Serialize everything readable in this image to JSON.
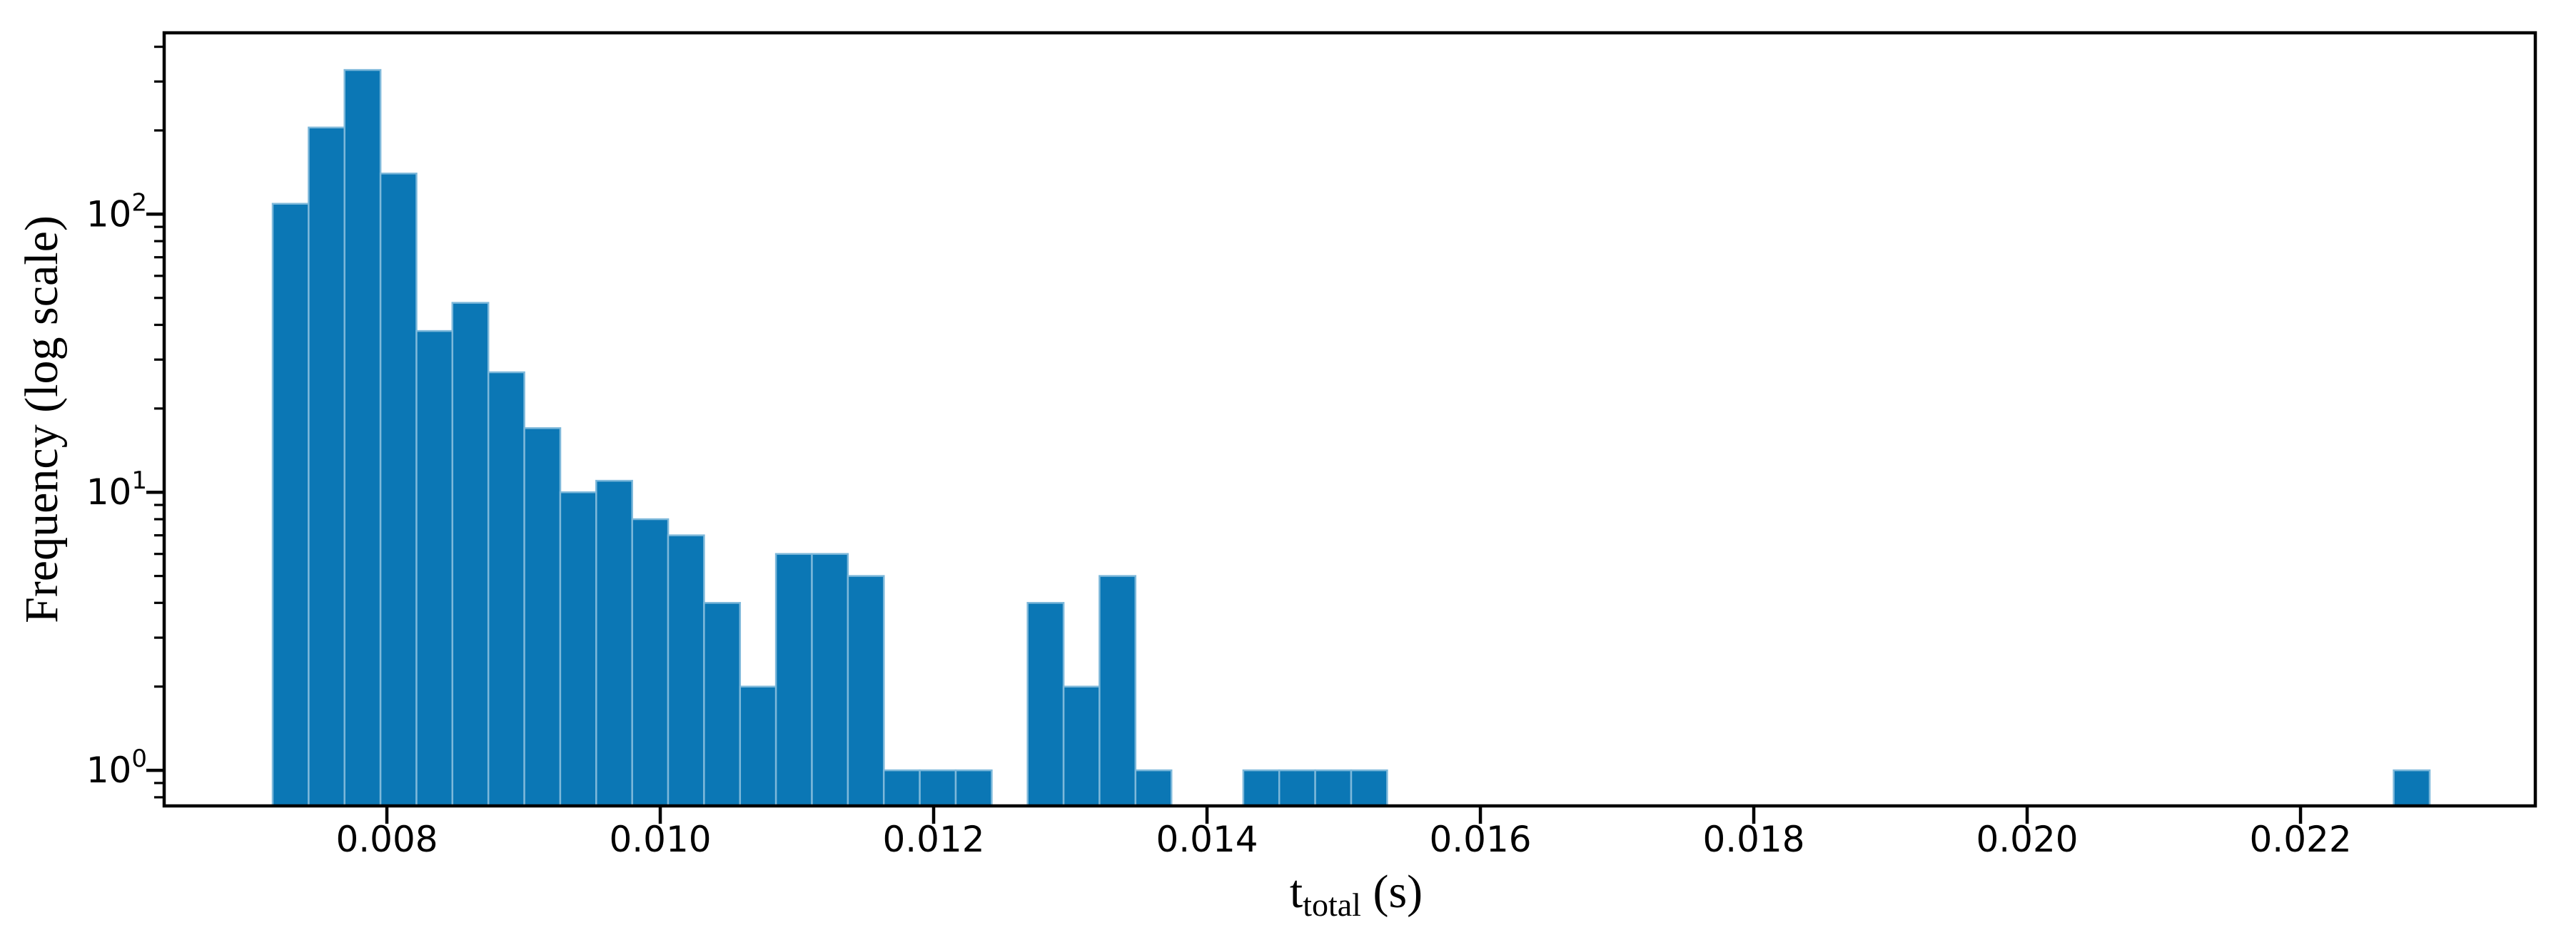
{
  "figure": {
    "background": "#ffffff",
    "bar_fill": "#0b77b5",
    "bar_edge": "#7db8da",
    "axis_color": "#000000"
  },
  "chart_data": {
    "type": "bar",
    "subtype": "histogram",
    "title": "",
    "xlabel": "t_total (s)",
    "xlabel_parts": {
      "base": "t",
      "sub": "total",
      "unit": "(s)"
    },
    "ylabel": "Frequency (log scale)",
    "x_scale": "linear",
    "y_scale": "log",
    "grid": false,
    "legend": null,
    "xlim": [
      0.0063707,
      0.0237177
    ],
    "ylim": [
      0.7447,
      449.0
    ],
    "bin_start": 0.0071645,
    "bin_width": 0.000263,
    "counts": [
      109,
      205,
      330,
      140,
      38,
      48,
      27,
      17,
      10,
      11,
      8,
      7,
      4,
      2,
      6,
      6,
      5,
      1,
      1,
      1,
      0,
      4,
      2,
      5,
      1,
      0,
      0,
      1,
      1,
      1,
      1,
      0,
      0,
      0,
      0,
      0,
      0,
      0,
      0,
      0,
      0,
      0,
      0,
      0,
      0,
      0,
      0,
      0,
      0,
      0,
      0,
      0,
      0,
      0,
      0,
      0,
      0,
      0,
      0,
      1
    ],
    "x_ticks": [
      0.008,
      0.01,
      0.012,
      0.014,
      0.016,
      0.018,
      0.02,
      0.022
    ],
    "x_tick_labels": [
      "0.008",
      "0.010",
      "0.012",
      "0.014",
      "0.016",
      "0.018",
      "0.020",
      "0.022"
    ],
    "y_ticks": [
      {
        "value": 1,
        "base": "10",
        "exp": "0"
      },
      {
        "value": 10,
        "base": "10",
        "exp": "1"
      },
      {
        "value": 100,
        "base": "10",
        "exp": "2"
      }
    ],
    "y_minor_tick_decades": [
      -1,
      0,
      1,
      2
    ]
  }
}
